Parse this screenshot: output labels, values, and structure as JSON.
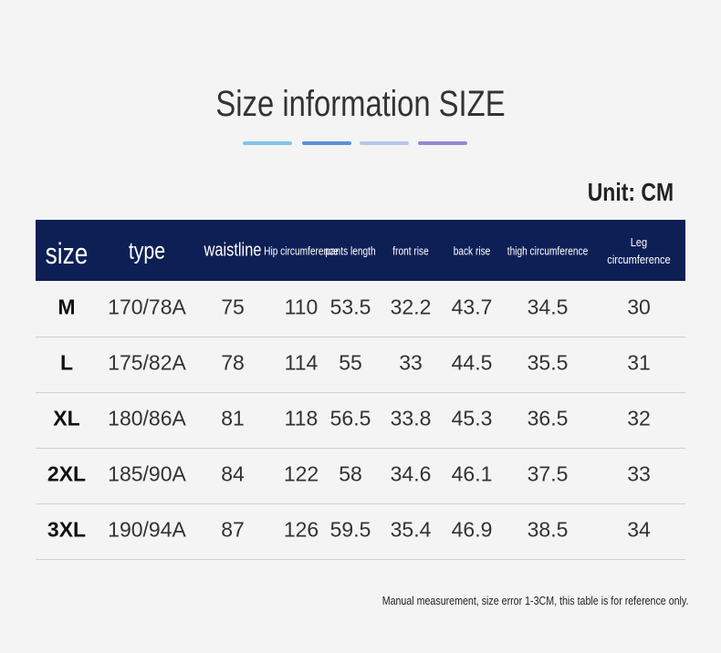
{
  "header": {
    "title": "Size information SIZE",
    "unit": "Unit: CM"
  },
  "table": {
    "columns": [
      "size",
      "type",
      "waistline",
      "Hip circumference",
      "pants length",
      "front rise",
      "back rise",
      "thigh circumference",
      "Leg circumference"
    ],
    "rows": [
      [
        "M",
        "170/78A",
        "75",
        "110",
        "53.5",
        "32.2",
        "43.7",
        "34.5",
        "30"
      ],
      [
        "L",
        "175/82A",
        "78",
        "114",
        "55",
        "33",
        "44.5",
        "35.5",
        "31"
      ],
      [
        "XL",
        "180/86A",
        "81",
        "118",
        "56.5",
        "33.8",
        "45.3",
        "36.5",
        "32"
      ],
      [
        "2XL",
        "185/90A",
        "84",
        "122",
        "58",
        "34.6",
        "46.1",
        "37.5",
        "33"
      ],
      [
        "3XL",
        "190/94A",
        "87",
        "126",
        "59.5",
        "35.4",
        "46.9",
        "38.5",
        "34"
      ]
    ]
  },
  "footer": {
    "note": "Manual measurement, size error 1-3CM, this table is for reference only."
  }
}
